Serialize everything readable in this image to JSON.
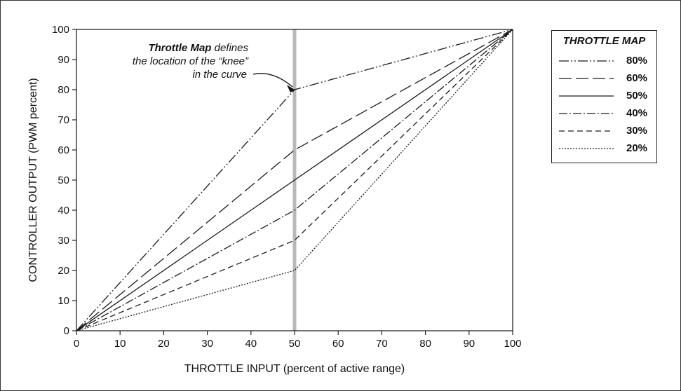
{
  "chart_data": {
    "type": "line",
    "xlabel": "THROTTLE INPUT  (percent of active range)",
    "ylabel": "CONTROLLER OUTPUT  (PWM percent)",
    "xlim": [
      0,
      100
    ],
    "ylim": [
      0,
      100
    ],
    "x_ticks": [
      "0",
      "10",
      "20",
      "30",
      "40",
      "50",
      "60",
      "70",
      "80",
      "90",
      "100"
    ],
    "y_ticks": [
      "0",
      "10",
      "20",
      "30",
      "40",
      "50",
      "60",
      "70",
      "80",
      "90",
      "100"
    ],
    "grid": false,
    "marker_x": 50,
    "legend_title": "THROTTLE MAP",
    "legend_position": "right",
    "series": [
      {
        "name": "80%",
        "x": [
          0,
          50,
          100
        ],
        "y": [
          0,
          80,
          100
        ],
        "dash": "14 3 2 3 2 3"
      },
      {
        "name": "60%",
        "x": [
          0,
          50,
          100
        ],
        "y": [
          0,
          60,
          100
        ],
        "dash": "18 6"
      },
      {
        "name": "50%",
        "x": [
          0,
          50,
          100
        ],
        "y": [
          0,
          50,
          100
        ],
        "dash": ""
      },
      {
        "name": "40%",
        "x": [
          0,
          50,
          100
        ],
        "y": [
          0,
          40,
          100
        ],
        "dash": "12 3 2 3"
      },
      {
        "name": "30%",
        "x": [
          0,
          50,
          100
        ],
        "y": [
          0,
          30,
          100
        ],
        "dash": "8 5"
      },
      {
        "name": "20%",
        "x": [
          0,
          50,
          100
        ],
        "y": [
          0,
          20,
          100
        ],
        "dash": "2 2"
      }
    ],
    "annotation": {
      "bold_text": "Throttle Map",
      "line1_rest": " defines",
      "line2": "the location of the “knee”",
      "line3": "in the curve",
      "points_to": {
        "x": 50,
        "y": 80
      }
    }
  },
  "colors": {
    "line": "#1a1a1a",
    "marker": "#b8b8b8",
    "axis": "#222222"
  }
}
